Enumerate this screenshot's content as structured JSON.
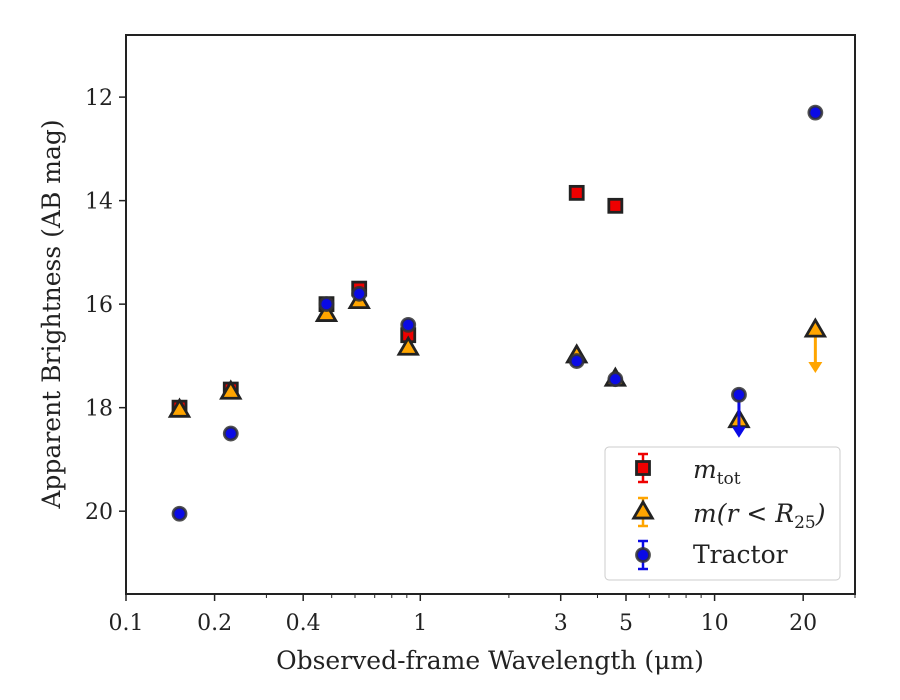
{
  "chart_data": {
    "type": "scatter",
    "title": "",
    "xlabel": "Observed-frame Wavelength (μm)",
    "ylabel": "Apparent Brightness (AB mag)",
    "xscale": "log",
    "xlim": [
      0.1,
      30
    ],
    "ylim": [
      21.6,
      10.8
    ],
    "y_inverted": true,
    "xticks": [
      {
        "value": 0.1,
        "label": "0.1"
      },
      {
        "value": 0.2,
        "label": "0.2"
      },
      {
        "value": 0.4,
        "label": "0.4"
      },
      {
        "value": 1,
        "label": "1"
      },
      {
        "value": 3,
        "label": "3"
      },
      {
        "value": 5,
        "label": "5"
      },
      {
        "value": 10,
        "label": "10"
      },
      {
        "value": 20,
        "label": "20"
      }
    ],
    "yticks": [
      {
        "value": 12,
        "label": "12"
      },
      {
        "value": 14,
        "label": "14"
      },
      {
        "value": 16,
        "label": "16"
      },
      {
        "value": 18,
        "label": "18"
      },
      {
        "value": 20,
        "label": "20"
      }
    ],
    "legend_position": "bottom-right",
    "series": [
      {
        "name": "m_tot",
        "legend_label": "m",
        "legend_sub": "tot",
        "marker": "square",
        "color": "#ee0000",
        "edge_color": "#222222",
        "x": [
          0.152,
          0.227,
          0.48,
          0.62,
          0.91,
          3.4,
          4.6
        ],
        "y": [
          18.0,
          17.65,
          16.0,
          15.7,
          16.6,
          13.85,
          14.1
        ],
        "yerr": [
          0.05,
          0.05,
          0.05,
          0.05,
          0.05,
          0.05,
          0.05
        ],
        "upper_limit": [
          false,
          false,
          false,
          false,
          false,
          false,
          false
        ]
      },
      {
        "name": "m(r < R_25)",
        "legend_label": "m(r < R",
        "legend_sub": "25",
        "legend_suffix": ")",
        "marker": "triangle",
        "color": "#ffa500",
        "edge_color": "#222222",
        "x": [
          0.152,
          0.227,
          0.48,
          0.62,
          0.91,
          3.4,
          4.6,
          12.1,
          22.0
        ],
        "y": [
          18.05,
          17.7,
          16.2,
          15.95,
          16.85,
          17.0,
          17.45,
          18.25,
          16.5
        ],
        "yerr": [
          0.05,
          0.05,
          0.05,
          0.05,
          0.05,
          0.05,
          0.05,
          0.3,
          0.0
        ],
        "upper_limit": [
          false,
          false,
          false,
          false,
          false,
          false,
          false,
          false,
          true
        ]
      },
      {
        "name": "Tractor",
        "legend_label": "Tractor",
        "marker": "circle",
        "color": "#0a0ae6",
        "edge_color": "#333333",
        "x": [
          0.152,
          0.227,
          0.48,
          0.62,
          0.91,
          3.4,
          4.6,
          12.1,
          22.0
        ],
        "y": [
          20.05,
          18.5,
          16.0,
          15.8,
          16.4,
          17.1,
          17.45,
          17.75,
          12.3
        ],
        "yerr": [
          0.05,
          0.05,
          0.05,
          0.05,
          0.05,
          0.05,
          0.05,
          0.15,
          0.05
        ],
        "upper_limit": [
          false,
          false,
          false,
          false,
          false,
          false,
          false,
          true,
          false
        ]
      }
    ]
  }
}
